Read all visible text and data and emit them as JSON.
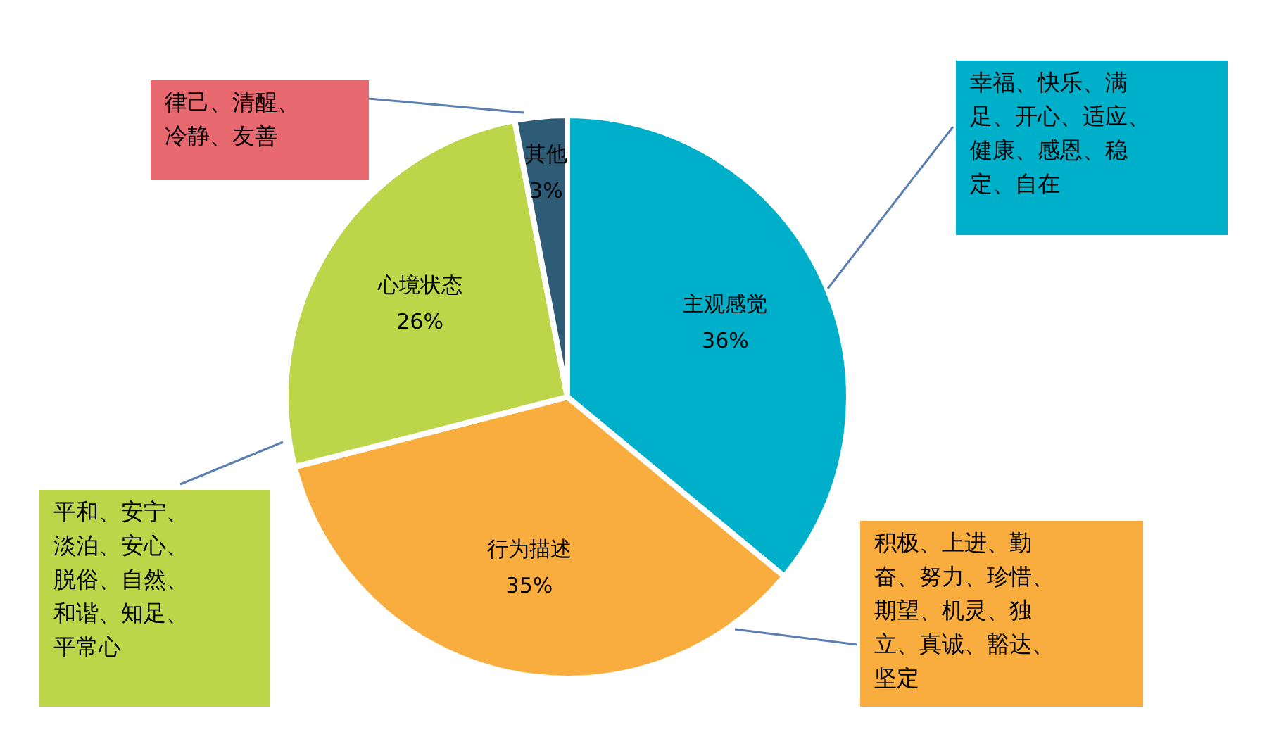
{
  "chart_data": {
    "type": "pie",
    "categories": [
      "主观感觉",
      "行为描述",
      "心境状态",
      "其他"
    ],
    "values": [
      36,
      35,
      26,
      3
    ],
    "value_labels": [
      "36%",
      "35%",
      "26%",
      "3%"
    ],
    "colors": [
      "#00b0cb",
      "#f9ad3e",
      "#bdd549",
      "#2e5c77"
    ],
    "annotations": [
      "幸福、快乐、满足、开心、适应、健康、感恩、稳定、自在",
      "积极、上进、勤奋、努力、珍惜、期望、机灵、独立、真诚、豁达、坚定",
      "平和、安宁、淡泊、安心、脱俗、自然、和谐、知足、平常心",
      "律己、清醒、冷静、友善"
    ]
  }
}
